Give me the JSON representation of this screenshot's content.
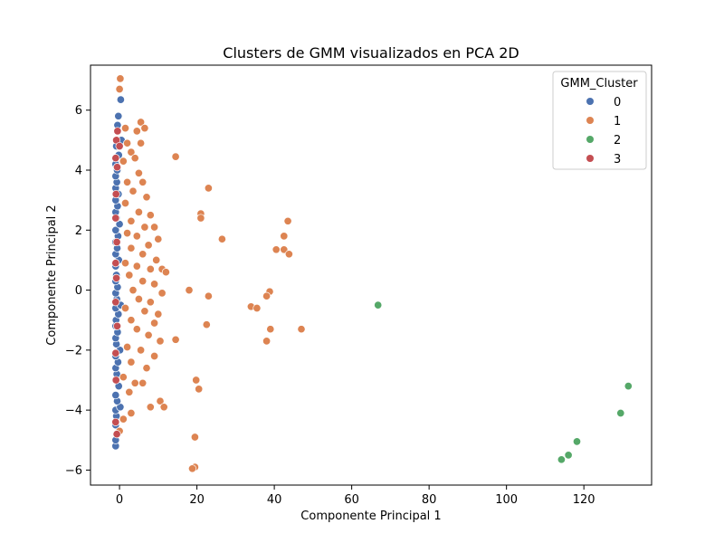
{
  "chart_data": {
    "type": "scatter",
    "title": "Clusters de GMM visualizados en PCA 2D",
    "xlabel": "Componente Principal 1",
    "ylabel": "Componente Principal 2",
    "xlim": [
      -7.5,
      137.5
    ],
    "ylim": [
      -6.5,
      7.5
    ],
    "xticks": [
      0,
      20,
      40,
      60,
      80,
      100,
      120
    ],
    "yticks": [
      -6,
      -4,
      -2,
      0,
      2,
      4,
      6
    ],
    "xtick_labels": [
      "0",
      "20",
      "40",
      "60",
      "80",
      "100",
      "120"
    ],
    "ytick_labels": [
      "−6",
      "−4",
      "−2",
      "0",
      "2",
      "4",
      "6"
    ],
    "grid": false,
    "legend": {
      "title": "GMM_Cluster",
      "position": "top-right",
      "entries": [
        "0",
        "1",
        "2",
        "3"
      ]
    },
    "series": [
      {
        "name": "0",
        "color": "#4c72b0",
        "points": [
          [
            -1,
            -5.2
          ],
          [
            -1,
            -5.0
          ],
          [
            -0.5,
            -4.8
          ],
          [
            -1,
            -4.5
          ],
          [
            -0.8,
            -4.2
          ],
          [
            -1,
            -4.0
          ],
          [
            0.2,
            -3.9
          ],
          [
            -0.6,
            -3.7
          ],
          [
            -1,
            -3.5
          ],
          [
            -0.2,
            -3.2
          ],
          [
            -1,
            -3.0
          ],
          [
            -0.7,
            -2.8
          ],
          [
            -1,
            -2.6
          ],
          [
            -0.4,
            -2.4
          ],
          [
            -1,
            -2.2
          ],
          [
            0.1,
            -2.0
          ],
          [
            -0.8,
            -1.8
          ],
          [
            -1,
            -1.6
          ],
          [
            -0.5,
            -1.4
          ],
          [
            -1,
            -1.2
          ],
          [
            -0.9,
            -1.0
          ],
          [
            -0.3,
            -0.8
          ],
          [
            -1,
            -0.6
          ],
          [
            0.3,
            -0.5
          ],
          [
            -0.7,
            -0.3
          ],
          [
            -1,
            -0.1
          ],
          [
            -0.5,
            0.1
          ],
          [
            -1,
            0.3
          ],
          [
            -0.8,
            0.5
          ],
          [
            -1,
            0.8
          ],
          [
            -0.2,
            1.0
          ],
          [
            -1,
            1.2
          ],
          [
            -0.6,
            1.4
          ],
          [
            -1,
            1.6
          ],
          [
            -0.4,
            1.8
          ],
          [
            -1,
            2.0
          ],
          [
            0.0,
            2.2
          ],
          [
            -0.8,
            2.4
          ],
          [
            -1,
            2.6
          ],
          [
            -0.5,
            2.8
          ],
          [
            -1,
            3.0
          ],
          [
            -0.3,
            3.2
          ],
          [
            -1,
            3.4
          ],
          [
            -0.7,
            3.6
          ],
          [
            -1,
            3.8
          ],
          [
            -0.6,
            4.0
          ],
          [
            -1,
            4.2
          ],
          [
            -0.2,
            4.5
          ],
          [
            -0.8,
            4.8
          ],
          [
            0.5,
            5.0
          ],
          [
            -0.5,
            5.5
          ],
          [
            -0.3,
            5.8
          ],
          [
            0.3,
            6.35
          ]
        ]
      },
      {
        "name": "1",
        "color": "#dd8452",
        "points": [
          [
            0.2,
            7.05
          ],
          [
            0,
            6.7
          ],
          [
            1.5,
            5.4
          ],
          [
            5.5,
            5.6
          ],
          [
            6.5,
            5.4
          ],
          [
            4.5,
            5.3
          ],
          [
            5.5,
            4.9
          ],
          [
            2,
            4.9
          ],
          [
            3,
            4.6
          ],
          [
            1,
            4.3
          ],
          [
            4,
            4.4
          ],
          [
            5,
            3.9
          ],
          [
            2,
            3.6
          ],
          [
            6,
            3.6
          ],
          [
            3.5,
            3.3
          ],
          [
            7,
            3.1
          ],
          [
            1.5,
            2.9
          ],
          [
            5,
            2.6
          ],
          [
            8,
            2.5
          ],
          [
            3,
            2.3
          ],
          [
            6.5,
            2.1
          ],
          [
            9,
            2.1
          ],
          [
            2,
            1.9
          ],
          [
            4.5,
            1.8
          ],
          [
            10,
            1.7
          ],
          [
            7.5,
            1.5
          ],
          [
            3,
            1.4
          ],
          [
            6,
            1.2
          ],
          [
            9.5,
            1.0
          ],
          [
            1.5,
            0.9
          ],
          [
            4.5,
            0.8
          ],
          [
            8,
            0.7
          ],
          [
            11,
            0.7
          ],
          [
            12,
            0.6
          ],
          [
            2.5,
            0.5
          ],
          [
            6,
            0.3
          ],
          [
            9,
            0.2
          ],
          [
            3.5,
            0.0
          ],
          [
            11,
            -0.1
          ],
          [
            5,
            -0.3
          ],
          [
            8,
            -0.4
          ],
          [
            1.5,
            -0.6
          ],
          [
            6.5,
            -0.7
          ],
          [
            10,
            -0.8
          ],
          [
            3,
            -1.0
          ],
          [
            9,
            -1.1
          ],
          [
            4.5,
            -1.3
          ],
          [
            7.5,
            -1.5
          ],
          [
            10.5,
            -1.7
          ],
          [
            2,
            -1.9
          ],
          [
            5.5,
            -2.0
          ],
          [
            9,
            -2.2
          ],
          [
            3,
            -2.4
          ],
          [
            7,
            -2.6
          ],
          [
            1,
            -2.9
          ],
          [
            4,
            -3.1
          ],
          [
            6,
            -3.1
          ],
          [
            2.5,
            -3.4
          ],
          [
            10.5,
            -3.7
          ],
          [
            11.5,
            -3.9
          ],
          [
            8,
            -3.9
          ],
          [
            3,
            -4.1
          ],
          [
            1,
            -4.3
          ],
          [
            0,
            -4.7
          ],
          [
            14.5,
            4.45
          ],
          [
            23,
            3.4
          ],
          [
            21,
            2.55
          ],
          [
            21,
            2.4
          ],
          [
            26.5,
            1.7
          ],
          [
            43.5,
            2.3
          ],
          [
            42.5,
            1.8
          ],
          [
            40.5,
            1.35
          ],
          [
            42.5,
            1.35
          ],
          [
            43.8,
            1.2
          ],
          [
            18,
            0.0
          ],
          [
            23,
            -0.2
          ],
          [
            38.8,
            -0.05
          ],
          [
            38,
            -0.2
          ],
          [
            34,
            -0.55
          ],
          [
            35.5,
            -0.6
          ],
          [
            22.5,
            -1.15
          ],
          [
            39,
            -1.3
          ],
          [
            47,
            -1.3
          ],
          [
            14.5,
            -1.65
          ],
          [
            38,
            -1.7
          ],
          [
            19.8,
            -3.0
          ],
          [
            20.5,
            -3.3
          ],
          [
            19.5,
            -4.9
          ],
          [
            19.5,
            -5.9
          ],
          [
            18.8,
            -5.95
          ]
        ]
      },
      {
        "name": "2",
        "color": "#55a868",
        "points": [
          [
            66.8,
            -0.5
          ],
          [
            131.5,
            -3.2
          ],
          [
            129.5,
            -4.1
          ],
          [
            118.2,
            -5.05
          ],
          [
            116,
            -5.5
          ],
          [
            114.2,
            -5.65
          ]
        ]
      },
      {
        "name": "3",
        "color": "#c44e52",
        "points": [
          [
            -0.5,
            5.3
          ],
          [
            -0.8,
            5.0
          ],
          [
            0.0,
            4.8
          ],
          [
            -1,
            4.4
          ],
          [
            -0.6,
            4.1
          ],
          [
            -0.9,
            3.2
          ],
          [
            -1,
            2.4
          ],
          [
            -0.7,
            1.6
          ],
          [
            -1,
            0.9
          ],
          [
            -0.8,
            0.4
          ],
          [
            -1,
            -0.4
          ],
          [
            -0.6,
            -1.2
          ],
          [
            -1,
            -2.1
          ],
          [
            -0.9,
            -3.0
          ],
          [
            -1,
            -4.4
          ],
          [
            -0.7,
            -4.8
          ]
        ]
      }
    ]
  }
}
